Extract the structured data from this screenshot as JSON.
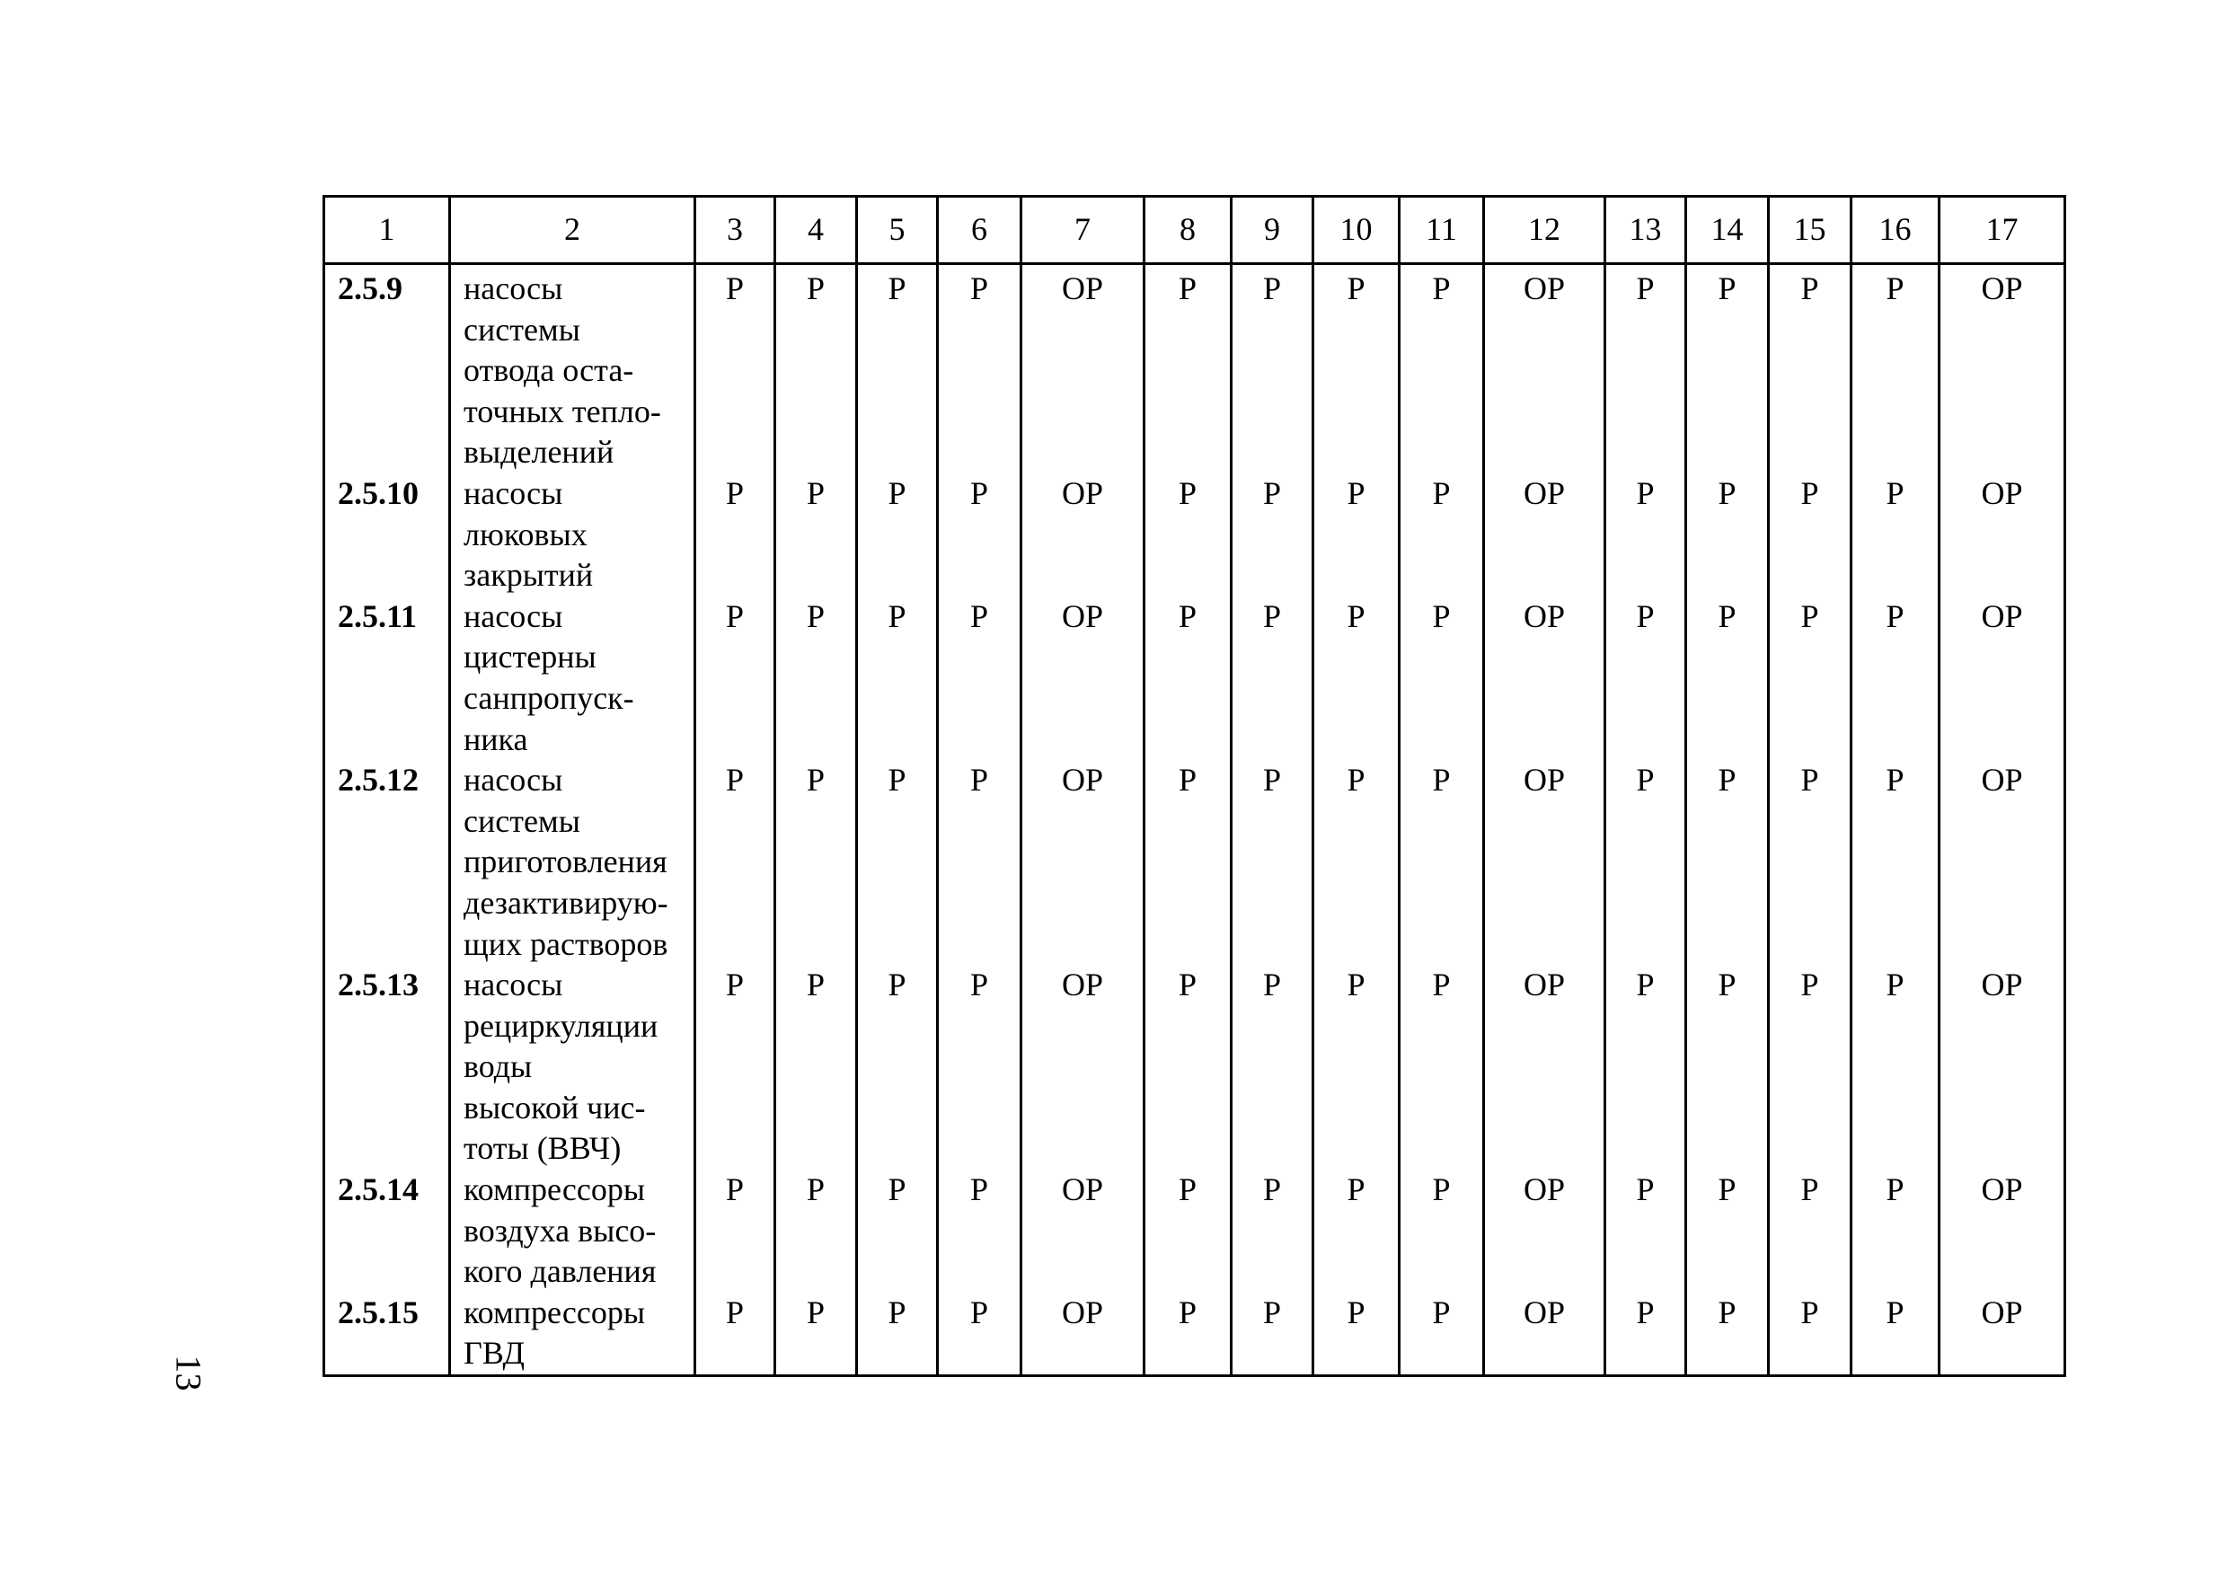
{
  "header": [
    "1",
    "2",
    "3",
    "4",
    "5",
    "6",
    "7",
    "8",
    "9",
    "10",
    "11",
    "12",
    "13",
    "14",
    "15",
    "16",
    "17"
  ],
  "rows": [
    {
      "num": "2.5.9",
      "desc": "насосы\nсистемы\nотвода оста-\nточных тепло-\nвыделений",
      "values": [
        "Р",
        "Р",
        "Р",
        "Р",
        "ОР",
        "Р",
        "Р",
        "Р",
        "Р",
        "ОР",
        "Р",
        "Р",
        "Р",
        "Р",
        "ОР"
      ]
    },
    {
      "num": "2.5.10",
      "desc": "насосы\nлюковых\nзакрытий",
      "values": [
        "Р",
        "Р",
        "Р",
        "Р",
        "ОР",
        "Р",
        "Р",
        "Р",
        "Р",
        "ОР",
        "Р",
        "Р",
        "Р",
        "Р",
        "ОР"
      ]
    },
    {
      "num": "2.5.11",
      "desc": "насосы\nцистерны\nсанпропуск-\nника",
      "values": [
        "Р",
        "Р",
        "Р",
        "Р",
        "ОР",
        "Р",
        "Р",
        "Р",
        "Р",
        "ОР",
        "Р",
        "Р",
        "Р",
        "Р",
        "ОР"
      ]
    },
    {
      "num": "2.5.12",
      "desc": "насосы\nсистемы\nприготовления\nдезактивирую-\nщих растворов",
      "values": [
        "Р",
        "Р",
        "Р",
        "Р",
        "ОР",
        "Р",
        "Р",
        "Р",
        "Р",
        "ОР",
        "Р",
        "Р",
        "Р",
        "Р",
        "ОР"
      ]
    },
    {
      "num": "2.5.13",
      "desc": "насосы\nрециркуляции\nводы\nвысокой чис-\nтоты (ВВЧ)",
      "values": [
        "Р",
        "Р",
        "Р",
        "Р",
        "ОР",
        "Р",
        "Р",
        "Р",
        "Р",
        "ОР",
        "Р",
        "Р",
        "Р",
        "Р",
        "ОР"
      ]
    },
    {
      "num": "2.5.14",
      "desc": "компрессоры\nвоздуха высо-\nкого давления",
      "values": [
        "Р",
        "Р",
        "Р",
        "Р",
        "ОР",
        "Р",
        "Р",
        "Р",
        "Р",
        "ОР",
        "Р",
        "Р",
        "Р",
        "Р",
        "ОР"
      ]
    },
    {
      "num": "2.5.15",
      "desc": "компрессоры\nГВД",
      "values": [
        "Р",
        "Р",
        "Р",
        "Р",
        "ОР",
        "Р",
        "Р",
        "Р",
        "Р",
        "ОР",
        "Р",
        "Р",
        "Р",
        "Р",
        "ОР"
      ]
    }
  ],
  "page_number": "13"
}
